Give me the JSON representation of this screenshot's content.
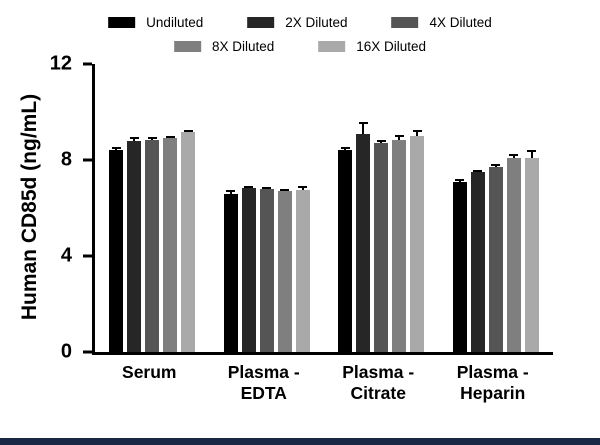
{
  "chart_data": {
    "type": "bar",
    "title": "",
    "xlabel": "",
    "ylabel": "Human CD85d (ng/mL)",
    "ylim": [
      0,
      12
    ],
    "yticks": [
      0,
      4,
      8,
      12
    ],
    "grid": false,
    "legend_position": "top",
    "categories": [
      "Serum",
      "Plasma -\nEDTA",
      "Plasma -\nCitrate",
      "Plasma -\nHeparin"
    ],
    "series": [
      {
        "name": "Undiluted",
        "color": "#000000",
        "values": [
          8.4,
          6.6,
          8.4,
          7.1
        ],
        "errors": [
          0.15,
          0.15,
          0.15,
          0.12
        ]
      },
      {
        "name": "2X Diluted",
        "color": "#262626",
        "values": [
          8.8,
          6.85,
          9.1,
          7.5
        ],
        "errors": [
          0.15,
          0.08,
          0.5,
          0.1
        ]
      },
      {
        "name": "4X Diluted",
        "color": "#555555",
        "values": [
          8.85,
          6.8,
          8.7,
          7.7
        ],
        "errors": [
          0.1,
          0.08,
          0.15,
          0.15
        ]
      },
      {
        "name": "8X Diluted",
        "color": "#7f7f7f",
        "values": [
          8.9,
          6.7,
          8.85,
          8.1
        ],
        "errors": [
          0.1,
          0.1,
          0.2,
          0.15
        ]
      },
      {
        "name": "16X Diluted",
        "color": "#a9a9a9",
        "values": [
          9.15,
          6.75,
          9.0,
          8.1
        ],
        "errors": [
          0.1,
          0.15,
          0.25,
          0.3
        ]
      }
    ]
  },
  "footer": {
    "strip_color": "#1a2744"
  }
}
